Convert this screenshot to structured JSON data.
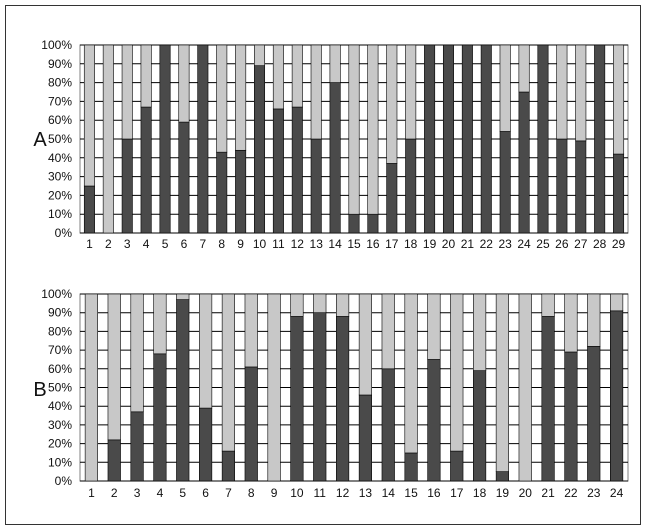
{
  "chart_data": [
    {
      "type": "bar",
      "stacked": true,
      "panel_label": "A",
      "categories": [
        "1",
        "2",
        "3",
        "4",
        "5",
        "6",
        "7",
        "8",
        "9",
        "10",
        "11",
        "12",
        "13",
        "14",
        "15",
        "16",
        "17",
        "18",
        "19",
        "20",
        "21",
        "22",
        "23",
        "24",
        "25",
        "26",
        "27",
        "28",
        "29"
      ],
      "series": [
        {
          "values": [
            25,
            0,
            50,
            67,
            100,
            59,
            100,
            43,
            44,
            89,
            66,
            67,
            50,
            80,
            10,
            10,
            37,
            50,
            100,
            100,
            100,
            100,
            54,
            75,
            100,
            50,
            49,
            100,
            42
          ]
        },
        {
          "values": [
            75,
            100,
            50,
            33,
            0,
            41,
            0,
            57,
            56,
            11,
            34,
            33,
            50,
            20,
            90,
            90,
            63,
            50,
            0,
            0,
            0,
            0,
            46,
            25,
            0,
            50,
            51,
            0,
            58
          ]
        }
      ],
      "ylim": [
        0,
        100
      ],
      "yticks": [
        "0%",
        "10%",
        "20%",
        "30%",
        "40%",
        "50%",
        "60%",
        "70%",
        "80%",
        "90%",
        "100%"
      ],
      "grid": true,
      "colors": {
        "dark": "#4a4a4a",
        "light": "#c8c8c8",
        "grid": "#000000",
        "axis": "#808080"
      }
    },
    {
      "type": "bar",
      "stacked": true,
      "panel_label": "B",
      "categories": [
        "1",
        "2",
        "3",
        "4",
        "5",
        "6",
        "7",
        "8",
        "9",
        "10",
        "11",
        "12",
        "13",
        "14",
        "15",
        "16",
        "17",
        "18",
        "19",
        "20",
        "21",
        "22",
        "23",
        "24"
      ],
      "series": [
        {
          "values": [
            0,
            22,
            37,
            68,
            97,
            39,
            16,
            61,
            0,
            88,
            90,
            88,
            46,
            60,
            15,
            65,
            16,
            59,
            5,
            0,
            88,
            69,
            72,
            91
          ]
        },
        {
          "values": [
            100,
            78,
            63,
            32,
            3,
            61,
            84,
            39,
            100,
            12,
            10,
            12,
            54,
            40,
            85,
            35,
            84,
            41,
            95,
            100,
            12,
            31,
            28,
            9
          ]
        }
      ],
      "ylim": [
        0,
        100
      ],
      "yticks": [
        "0%",
        "10%",
        "20%",
        "30%",
        "40%",
        "50%",
        "60%",
        "70%",
        "80%",
        "90%",
        "100%"
      ],
      "grid": true,
      "colors": {
        "dark": "#4a4a4a",
        "light": "#c8c8c8",
        "grid": "#000000",
        "axis": "#808080"
      }
    }
  ]
}
